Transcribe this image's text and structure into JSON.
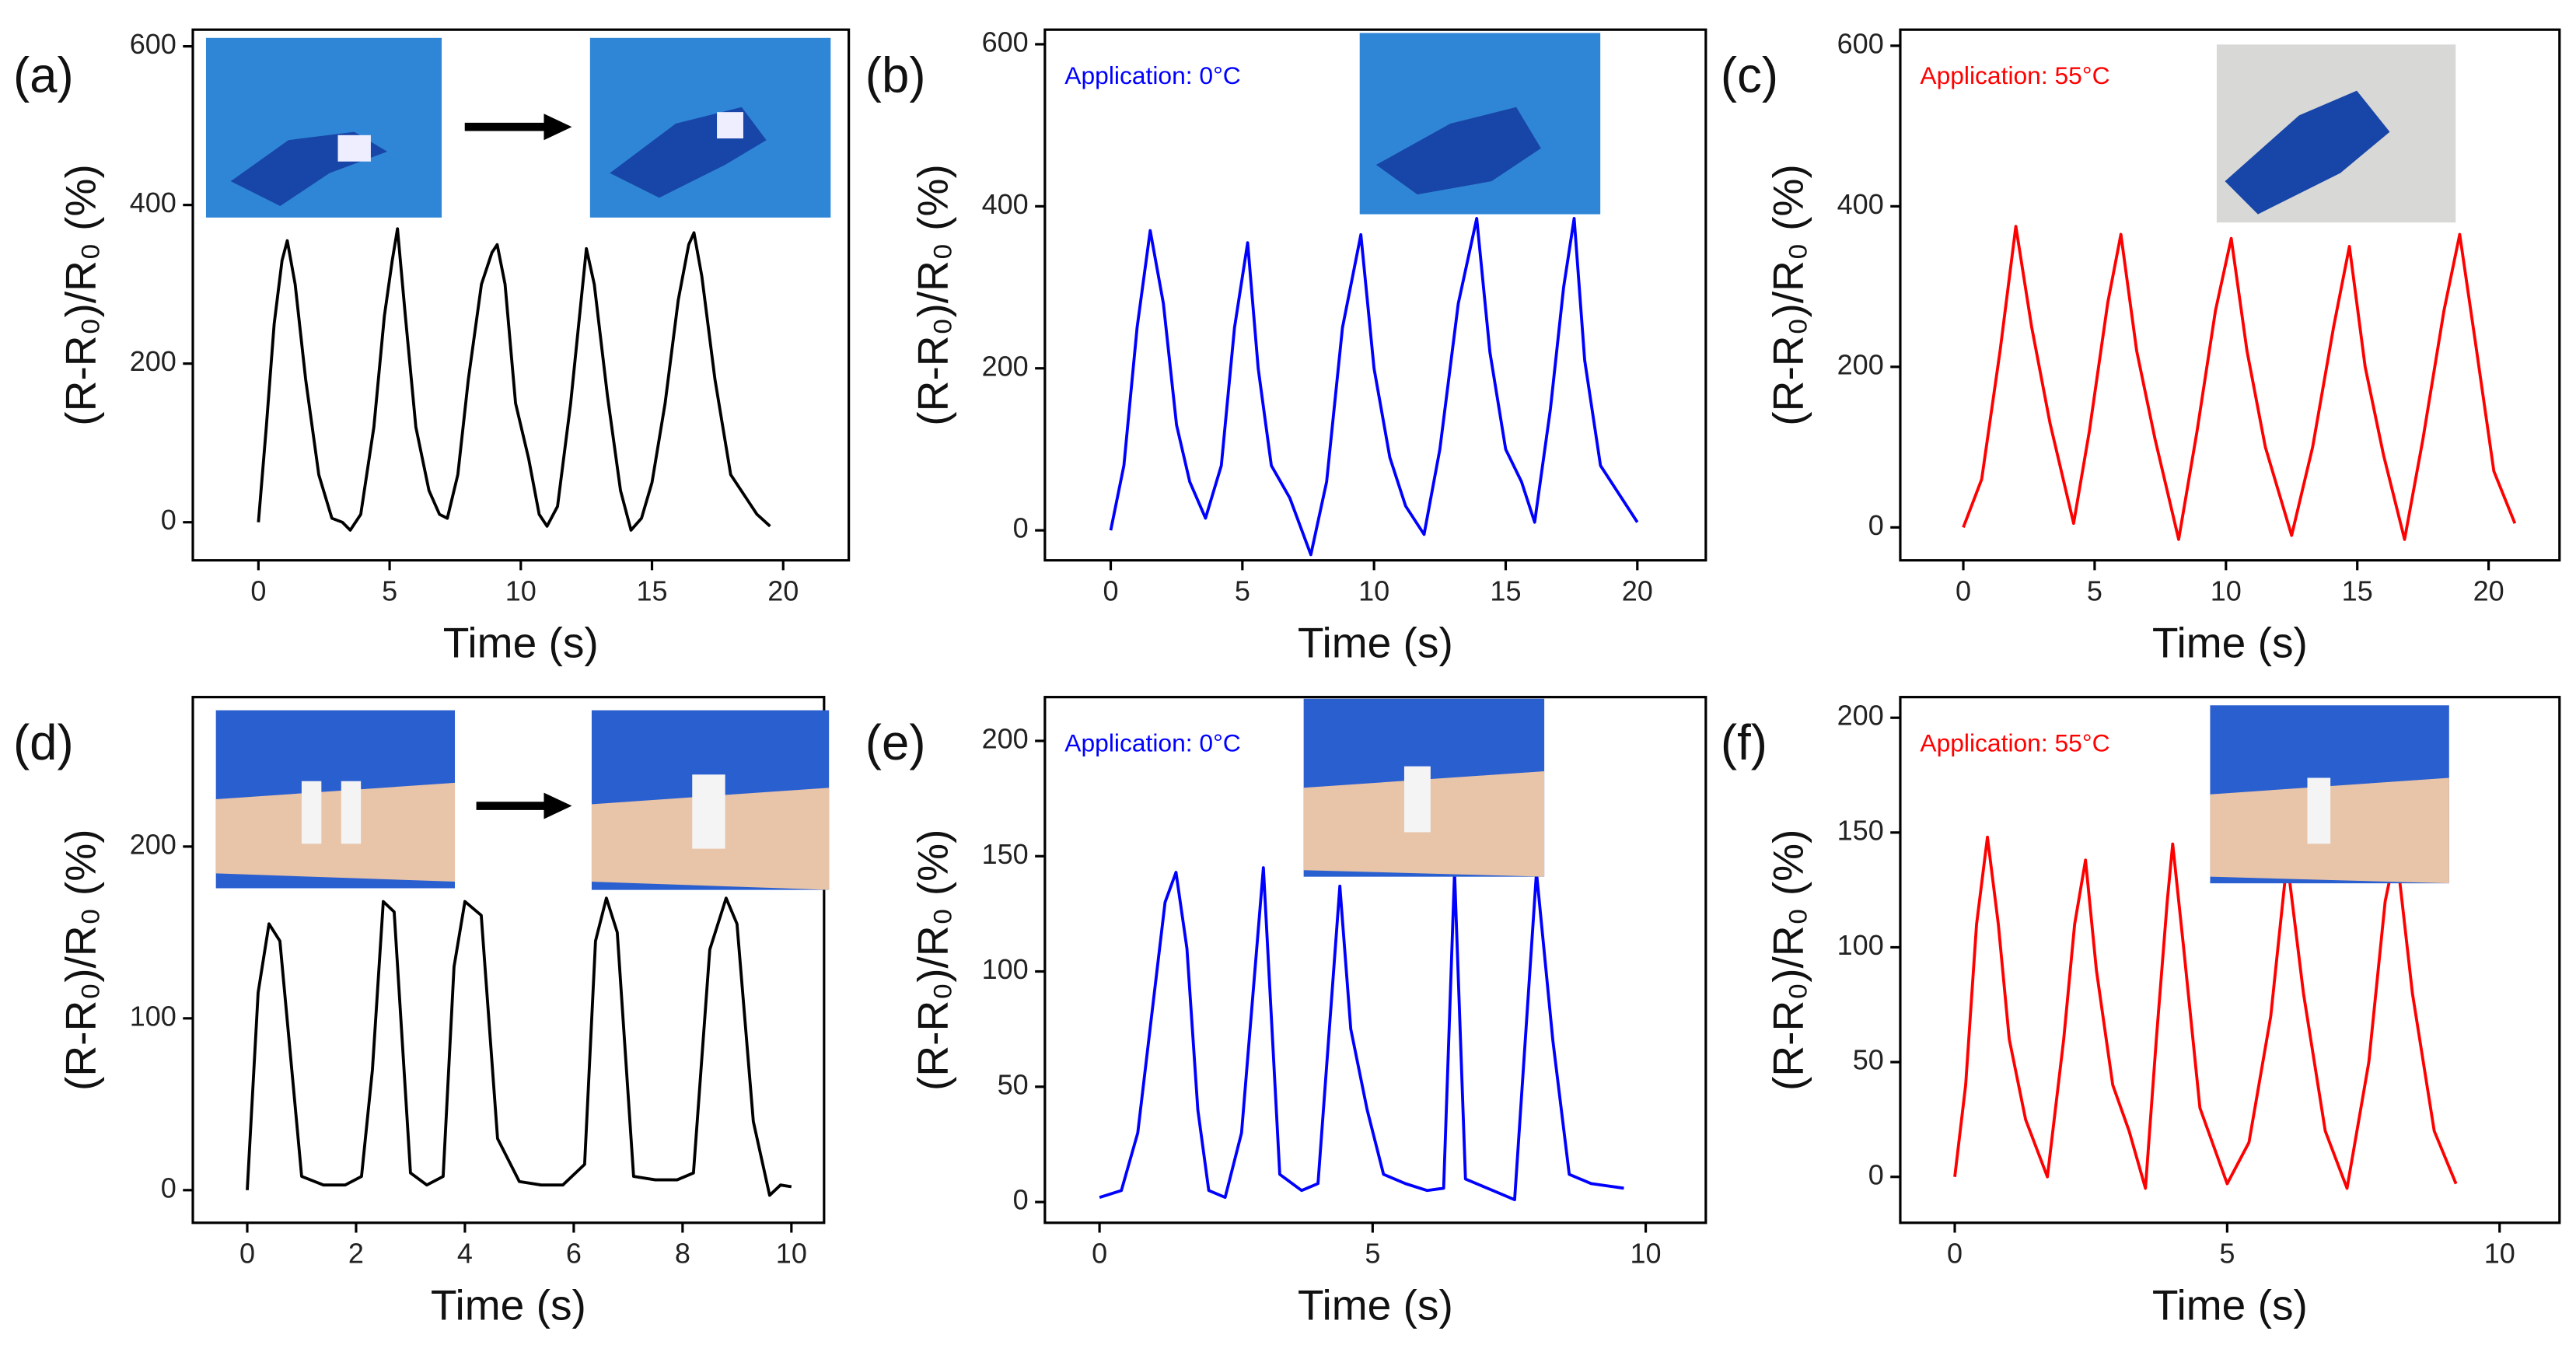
{
  "chart_data": [
    {
      "type": "line",
      "panel_label": "(a)",
      "xlabel": "Time (s)",
      "ylabel": "(R-R₀)/R₀ (%)",
      "color": "#000000",
      "x": [
        0,
        0.3,
        0.6,
        0.9,
        1.1,
        1.4,
        1.8,
        2.3,
        2.8,
        3.2,
        3.5,
        3.9,
        4.4,
        4.8,
        5.1,
        5.3,
        5.6,
        6.0,
        6.5,
        6.9,
        7.2,
        7.6,
        8.0,
        8.5,
        8.9,
        9.1,
        9.4,
        9.8,
        10.3,
        10.7,
        11.0,
        11.4,
        11.9,
        12.3,
        12.5,
        12.8,
        13.3,
        13.8,
        14.2,
        14.6,
        15.0,
        15.5,
        16.0,
        16.4,
        16.6,
        16.9,
        17.4,
        18.0,
        18.6,
        19.0,
        19.5
      ],
      "values": [
        0,
        120,
        250,
        330,
        355,
        300,
        180,
        60,
        5,
        0,
        -10,
        10,
        120,
        260,
        330,
        370,
        260,
        120,
        40,
        10,
        5,
        60,
        180,
        300,
        340,
        350,
        300,
        150,
        80,
        10,
        -5,
        20,
        150,
        280,
        345,
        300,
        160,
        40,
        -10,
        5,
        50,
        150,
        280,
        350,
        365,
        310,
        180,
        60,
        30,
        10,
        -5
      ],
      "xlim": [
        -2.5,
        22.5
      ],
      "ylim": [
        -48,
        621
      ],
      "xticks": [
        0,
        5,
        10,
        15,
        20
      ],
      "yticks": [
        0,
        200,
        400,
        600
      ]
    },
    {
      "type": "line",
      "panel_label": "(b)",
      "annotation": "Application: 0°C",
      "xlabel": "Time (s)",
      "ylabel": "(R-R₀)/R₀ (%)",
      "color": "#0000ff",
      "x": [
        0,
        0.5,
        1.0,
        1.5,
        2.0,
        2.5,
        3.0,
        3.6,
        4.2,
        4.7,
        5.2,
        5.6,
        6.1,
        6.8,
        7.6,
        8.2,
        8.8,
        9.5,
        10.0,
        10.6,
        11.2,
        11.9,
        12.5,
        13.2,
        13.9,
        14.4,
        15.0,
        15.6,
        16.1,
        16.7,
        17.2,
        17.6,
        18.0,
        18.6,
        19.4,
        20.0
      ],
      "values": [
        0,
        80,
        250,
        370,
        280,
        130,
        60,
        15,
        80,
        250,
        355,
        200,
        80,
        40,
        -30,
        60,
        250,
        365,
        200,
        90,
        30,
        -5,
        100,
        280,
        385,
        220,
        100,
        60,
        10,
        150,
        300,
        385,
        210,
        80,
        40,
        10
      ],
      "xlim": [
        -2.5,
        22.6
      ],
      "ylim": [
        -37,
        618
      ],
      "xticks": [
        0,
        5,
        10,
        15,
        20
      ],
      "yticks": [
        0,
        200,
        400,
        600
      ]
    },
    {
      "type": "line",
      "panel_label": "(c)",
      "annotation": "Application: 55°C",
      "xlabel": "Time (s)",
      "ylabel": "(R-R₀)/R₀ (%)",
      "color": "#ff0000",
      "x": [
        0,
        0.7,
        1.4,
        2.0,
        2.6,
        3.3,
        4.2,
        4.8,
        5.5,
        6.0,
        6.6,
        7.3,
        8.2,
        8.9,
        9.6,
        10.2,
        10.8,
        11.5,
        12.5,
        13.3,
        14.1,
        14.7,
        15.3,
        16.0,
        16.8,
        17.5,
        18.3,
        18.9,
        19.5,
        20.2,
        21.0
      ],
      "values": [
        0,
        60,
        220,
        375,
        250,
        130,
        5,
        120,
        280,
        365,
        220,
        110,
        -15,
        120,
        270,
        360,
        220,
        100,
        -10,
        100,
        250,
        350,
        200,
        90,
        -15,
        110,
        270,
        365,
        230,
        70,
        5
      ],
      "xlim": [
        -2.4,
        22.7
      ],
      "ylim": [
        -41,
        620
      ],
      "xticks": [
        0,
        5,
        10,
        15,
        20
      ],
      "yticks": [
        0,
        200,
        400,
        600
      ]
    },
    {
      "type": "line",
      "panel_label": "(d)",
      "xlabel": "Time (s)",
      "ylabel": "(R-R₀)/R₀ (%)",
      "color": "#000000",
      "x": [
        0,
        0.2,
        0.4,
        0.6,
        1.0,
        1.4,
        1.8,
        2.1,
        2.3,
        2.5,
        2.7,
        3.0,
        3.3,
        3.6,
        3.8,
        4.0,
        4.3,
        4.6,
        5.0,
        5.4,
        5.8,
        6.2,
        6.4,
        6.6,
        6.8,
        7.1,
        7.5,
        7.9,
        8.2,
        8.5,
        8.8,
        9.0,
        9.3,
        9.6,
        9.8,
        10.0
      ],
      "values": [
        0,
        115,
        155,
        145,
        8,
        3,
        3,
        8,
        70,
        168,
        162,
        10,
        3,
        8,
        130,
        168,
        160,
        30,
        5,
        3,
        3,
        15,
        145,
        170,
        150,
        8,
        6,
        6,
        10,
        140,
        170,
        155,
        40,
        -3,
        3,
        2
      ],
      "xlim": [
        -1,
        10.6
      ],
      "ylim": [
        -19,
        287
      ],
      "xticks": [
        0,
        2,
        4,
        6,
        8,
        10
      ],
      "yticks": [
        0,
        100,
        200
      ]
    },
    {
      "type": "line",
      "panel_label": "(e)",
      "annotation": "Application: 0°C",
      "xlabel": "Time (s)",
      "ylabel": "(R-R₀)/R₀ (%)",
      "color": "#0000ff",
      "x": [
        0,
        0.4,
        0.7,
        1.0,
        1.2,
        1.4,
        1.6,
        1.8,
        2.0,
        2.3,
        2.6,
        3.0,
        3.3,
        3.7,
        4.0,
        4.4,
        4.6,
        4.9,
        5.2,
        5.6,
        6.0,
        6.3,
        6.5,
        6.7,
        7.2,
        7.6,
        8.0,
        8.3,
        8.6,
        9.0,
        9.6
      ],
      "values": [
        2,
        5,
        30,
        90,
        130,
        143,
        110,
        40,
        5,
        2,
        30,
        145,
        12,
        5,
        8,
        137,
        75,
        40,
        12,
        8,
        5,
        6,
        143,
        10,
        5,
        1,
        143,
        70,
        12,
        8,
        6
      ],
      "xlim": [
        -1,
        11.1
      ],
      "ylim": [
        -9,
        219
      ],
      "xticks": [
        0,
        5,
        10
      ],
      "yticks": [
        0,
        50,
        100,
        150,
        200
      ]
    },
    {
      "type": "line",
      "panel_label": "(f)",
      "annotation": "Application: 55°C",
      "xlabel": "Time (s)",
      "ylabel": "(R-R₀)/R₀ (%)",
      "color": "#ff0000",
      "x": [
        0,
        0.2,
        0.4,
        0.6,
        0.8,
        1.0,
        1.3,
        1.7,
        2.0,
        2.2,
        2.4,
        2.6,
        2.9,
        3.2,
        3.5,
        3.7,
        3.9,
        4.0,
        4.2,
        4.5,
        5.0,
        5.4,
        5.8,
        6.1,
        6.4,
        6.8,
        7.2,
        7.6,
        7.9,
        8.1,
        8.4,
        8.8,
        9.2
      ],
      "values": [
        0,
        40,
        110,
        148,
        110,
        60,
        25,
        0,
        60,
        110,
        138,
        90,
        40,
        20,
        -5,
        60,
        120,
        145,
        100,
        30,
        -3,
        15,
        70,
        138,
        80,
        20,
        -5,
        50,
        120,
        143,
        80,
        20,
        -3
      ],
      "xlim": [
        -1,
        11.1
      ],
      "ylim": [
        -20,
        209
      ],
      "xticks": [
        0,
        5,
        10
      ],
      "yticks": [
        0,
        50,
        100,
        150,
        200
      ]
    }
  ]
}
